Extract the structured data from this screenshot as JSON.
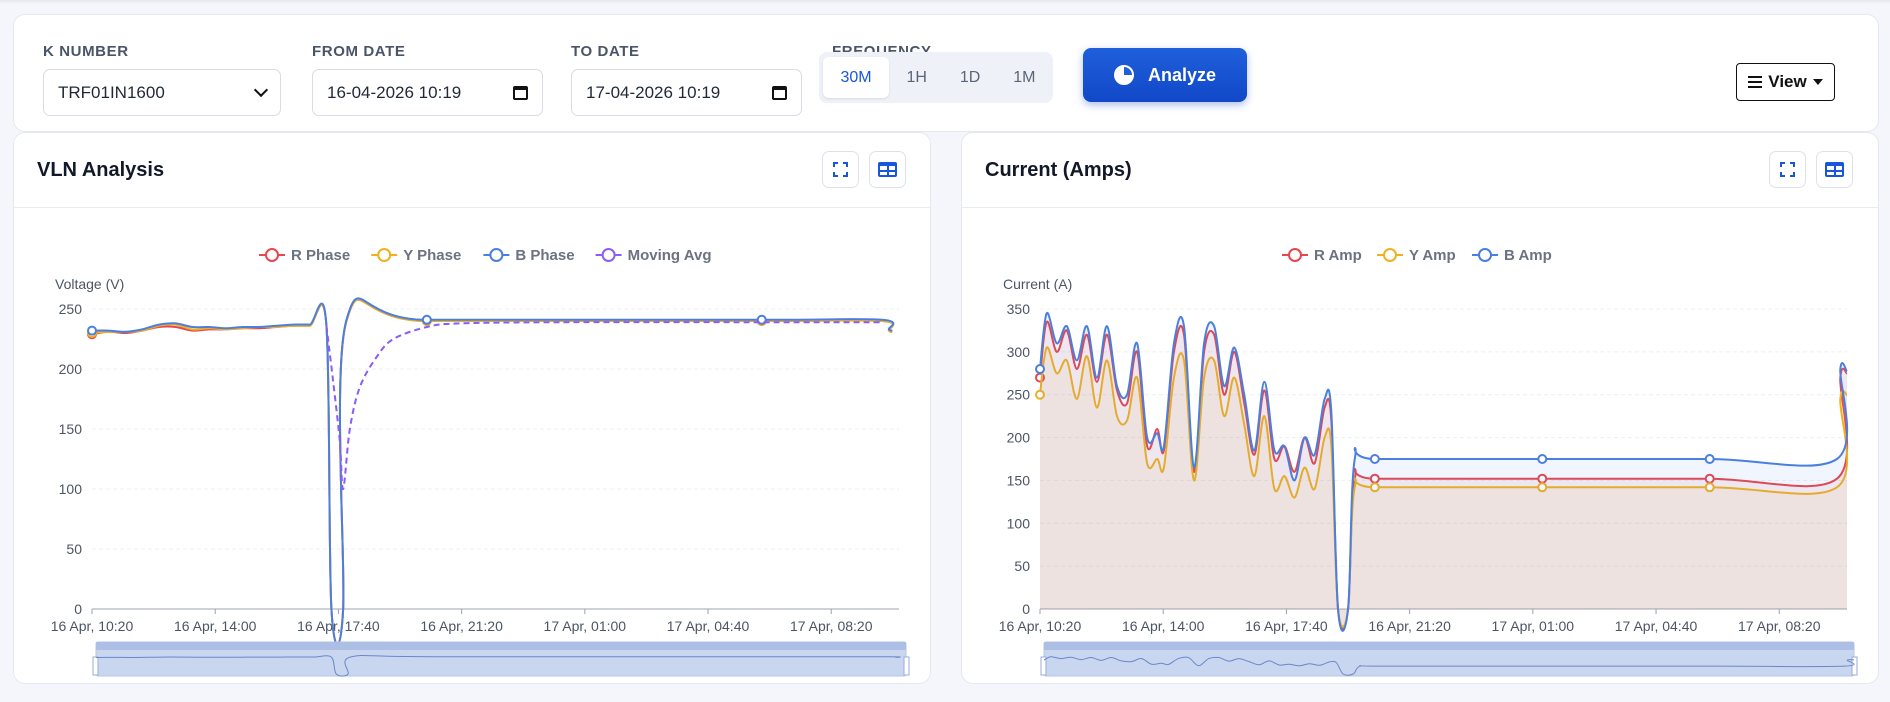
{
  "filters": {
    "k_number": {
      "label": "K NUMBER",
      "value": "TRF01IN1600"
    },
    "from_date": {
      "label": "FROM DATE",
      "value": "16-04-2026 10:19"
    },
    "to_date": {
      "label": "TO DATE",
      "value": "17-04-2026 10:19"
    },
    "frequency": {
      "label": "FREQUENCY",
      "options": [
        "30M",
        "1H",
        "1D",
        "1M"
      ],
      "selected": "30M"
    },
    "analyze_label": "Analyze",
    "view_label": "View"
  },
  "colors": {
    "accent": "#1a56db",
    "r": "#e8464d",
    "y": "#f0b020",
    "b": "#4a7fe0",
    "avg": "#8b5cf6"
  },
  "panels": {
    "vln": {
      "title": "VLN Analysis"
    },
    "current": {
      "title": "Current (Amps)"
    }
  },
  "chart_data": [
    {
      "type": "line",
      "title": "VLN Analysis",
      "ylabel": "Voltage (V)",
      "ylim": [
        0,
        250
      ],
      "yticks": [
        0,
        50,
        100,
        150,
        200,
        250
      ],
      "xticks": [
        "16 Apr, 10:20",
        "16 Apr, 14:00",
        "16 Apr, 17:40",
        "16 Apr, 21:20",
        "17 Apr, 01:00",
        "17 Apr, 04:40",
        "17 Apr, 08:20"
      ],
      "legend": "top-center",
      "grid": true,
      "series": [
        {
          "name": "R Phase",
          "color": "#e8464d",
          "values": [
            [
              0,
              229
            ],
            [
              0.5,
              231
            ],
            [
              1,
              230
            ],
            [
              1.5,
              232
            ],
            [
              2,
              235
            ],
            [
              2.5,
              235
            ],
            [
              3,
              232
            ],
            [
              3.5,
              233
            ],
            [
              4,
              233
            ],
            [
              4.5,
              234
            ],
            [
              5,
              234
            ],
            [
              5.5,
              235
            ],
            [
              6,
              236
            ],
            [
              6.5,
              236
            ],
            [
              7,
              236
            ],
            [
              7.15,
              0
            ],
            [
              7.5,
              0
            ],
            [
              7.6,
              240
            ],
            [
              10,
              240
            ],
            [
              20,
              240
            ],
            [
              23.6,
              240
            ],
            [
              23.8,
              232
            ],
            [
              23.9,
              231
            ]
          ]
        },
        {
          "name": "Y Phase",
          "color": "#f0b020",
          "values": [
            [
              0,
              230
            ],
            [
              0.5,
              231
            ],
            [
              1,
              231
            ],
            [
              1.5,
              232
            ],
            [
              2,
              236
            ],
            [
              2.5,
              237
            ],
            [
              3,
              233
            ],
            [
              3.5,
              234
            ],
            [
              4,
              233
            ],
            [
              4.5,
              234
            ],
            [
              5,
              235
            ],
            [
              5.5,
              235
            ],
            [
              6,
              236
            ],
            [
              6.5,
              236
            ],
            [
              7,
              236
            ],
            [
              7.15,
              0
            ],
            [
              7.5,
              0
            ],
            [
              7.6,
              240
            ],
            [
              10,
              240
            ],
            [
              20,
              240
            ],
            [
              23.6,
              240
            ],
            [
              23.8,
              232
            ],
            [
              23.9,
              231
            ]
          ]
        },
        {
          "name": "B Phase",
          "color": "#4a7fe0",
          "values": [
            [
              0,
              232
            ],
            [
              0.5,
              232
            ],
            [
              1,
              231
            ],
            [
              1.5,
              233
            ],
            [
              2,
              237
            ],
            [
              2.5,
              238
            ],
            [
              3,
              235
            ],
            [
              3.5,
              235
            ],
            [
              4,
              234
            ],
            [
              4.5,
              235
            ],
            [
              5,
              235
            ],
            [
              5.5,
              236
            ],
            [
              6,
              237
            ],
            [
              6.5,
              237
            ],
            [
              7,
              237
            ],
            [
              7.15,
              0
            ],
            [
              7.5,
              0
            ],
            [
              7.6,
              241
            ],
            [
              10,
              241
            ],
            [
              20,
              241
            ],
            [
              23.6,
              241
            ],
            [
              23.8,
              233
            ],
            [
              23.9,
              232
            ]
          ]
        },
        {
          "name": "Moving Avg",
          "color": "#8b5cf6",
          "dashed": true,
          "values": [
            [
              7,
              236
            ],
            [
              7.2,
              190
            ],
            [
              7.4,
              140
            ],
            [
              7.5,
              100
            ],
            [
              7.7,
              150
            ],
            [
              8,
              185
            ],
            [
              8.5,
              210
            ],
            [
              9,
              225
            ],
            [
              10,
              235
            ],
            [
              11,
              238
            ],
            [
              14,
              239
            ],
            [
              20,
              239
            ],
            [
              23.6,
              239
            ]
          ]
        }
      ]
    },
    {
      "type": "area",
      "title": "Current (Amps)",
      "ylabel": "Current (A)",
      "ylim": [
        0,
        350
      ],
      "yticks": [
        0,
        50,
        100,
        150,
        200,
        250,
        300,
        350
      ],
      "xticks": [
        "16 Apr, 10:20",
        "16 Apr, 14:00",
        "16 Apr, 17:40",
        "16 Apr, 21:20",
        "17 Apr, 01:00",
        "17 Apr, 04:40",
        "17 Apr, 08:20"
      ],
      "legend": "top-center",
      "grid": true,
      "series": [
        {
          "name": "R Amp",
          "color": "#e8464d",
          "values": [
            [
              0,
              270
            ],
            [
              0.2,
              335
            ],
            [
              0.5,
              300
            ],
            [
              0.8,
              325
            ],
            [
              1.1,
              280
            ],
            [
              1.4,
              320
            ],
            [
              1.7,
              265
            ],
            [
              2,
              320
            ],
            [
              2.3,
              255
            ],
            [
              2.6,
              240
            ],
            [
              2.9,
              300
            ],
            [
              3.2,
              190
            ],
            [
              3.5,
              210
            ],
            [
              3.7,
              185
            ],
            [
              4,
              300
            ],
            [
              4.3,
              320
            ],
            [
              4.6,
              160
            ],
            [
              4.9,
              300
            ],
            [
              5.2,
              320
            ],
            [
              5.5,
              250
            ],
            [
              5.8,
              300
            ],
            [
              6.1,
              240
            ],
            [
              6.4,
              180
            ],
            [
              6.7,
              255
            ],
            [
              7,
              175
            ],
            [
              7.3,
              190
            ],
            [
              7.6,
              160
            ],
            [
              7.9,
              200
            ],
            [
              8.2,
              170
            ],
            [
              8.5,
              235
            ],
            [
              8.7,
              220
            ],
            [
              8.9,
              0
            ],
            [
              9.2,
              0
            ],
            [
              9.4,
              152
            ],
            [
              10,
              152
            ],
            [
              15,
              152
            ],
            [
              20,
              152
            ],
            [
              23.8,
              152
            ],
            [
              23.9,
              270
            ],
            [
              24.1,
              275
            ]
          ]
        },
        {
          "name": "Y Amp",
          "color": "#f0b020",
          "values": [
            [
              0,
              250
            ],
            [
              0.2,
              305
            ],
            [
              0.5,
              275
            ],
            [
              0.8,
              290
            ],
            [
              1.1,
              245
            ],
            [
              1.4,
              295
            ],
            [
              1.7,
              235
            ],
            [
              2,
              290
            ],
            [
              2.3,
              225
            ],
            [
              2.6,
              220
            ],
            [
              2.9,
              270
            ],
            [
              3.2,
              170
            ],
            [
              3.5,
              175
            ],
            [
              3.7,
              165
            ],
            [
              4,
              270
            ],
            [
              4.3,
              290
            ],
            [
              4.6,
              150
            ],
            [
              4.9,
              270
            ],
            [
              5.2,
              290
            ],
            [
              5.5,
              225
            ],
            [
              5.8,
              270
            ],
            [
              6.1,
              215
            ],
            [
              6.4,
              155
            ],
            [
              6.7,
              225
            ],
            [
              7,
              140
            ],
            [
              7.3,
              155
            ],
            [
              7.6,
              130
            ],
            [
              7.9,
              165
            ],
            [
              8.2,
              140
            ],
            [
              8.5,
              200
            ],
            [
              8.7,
              190
            ],
            [
              8.9,
              0
            ],
            [
              9.2,
              0
            ],
            [
              9.4,
              142
            ],
            [
              10,
              142
            ],
            [
              15,
              142
            ],
            [
              20,
              142
            ],
            [
              23.8,
              142
            ],
            [
              23.9,
              245
            ],
            [
              24.1,
              250
            ]
          ]
        },
        {
          "name": "B Amp",
          "color": "#4a7fe0",
          "values": [
            [
              0,
              280
            ],
            [
              0.2,
              345
            ],
            [
              0.5,
              310
            ],
            [
              0.8,
              330
            ],
            [
              1.1,
              290
            ],
            [
              1.4,
              330
            ],
            [
              1.7,
              270
            ],
            [
              2,
              330
            ],
            [
              2.3,
              260
            ],
            [
              2.6,
              250
            ],
            [
              2.9,
              310
            ],
            [
              3.2,
              200
            ],
            [
              3.5,
              205
            ],
            [
              3.7,
              190
            ],
            [
              4,
              310
            ],
            [
              4.3,
              330
            ],
            [
              4.6,
              165
            ],
            [
              4.9,
              310
            ],
            [
              5.2,
              330
            ],
            [
              5.5,
              260
            ],
            [
              5.8,
              305
            ],
            [
              6.1,
              250
            ],
            [
              6.4,
              185
            ],
            [
              6.7,
              265
            ],
            [
              7,
              185
            ],
            [
              7.3,
              190
            ],
            [
              7.6,
              150
            ],
            [
              7.9,
              200
            ],
            [
              8.2,
              180
            ],
            [
              8.5,
              245
            ],
            [
              8.7,
              230
            ],
            [
              8.9,
              0
            ],
            [
              9.2,
              0
            ],
            [
              9.4,
              175
            ],
            [
              10,
              175
            ],
            [
              15,
              175
            ],
            [
              20,
              175
            ],
            [
              23.8,
              175
            ],
            [
              23.9,
              280
            ],
            [
              24.1,
              277
            ]
          ]
        }
      ]
    }
  ]
}
